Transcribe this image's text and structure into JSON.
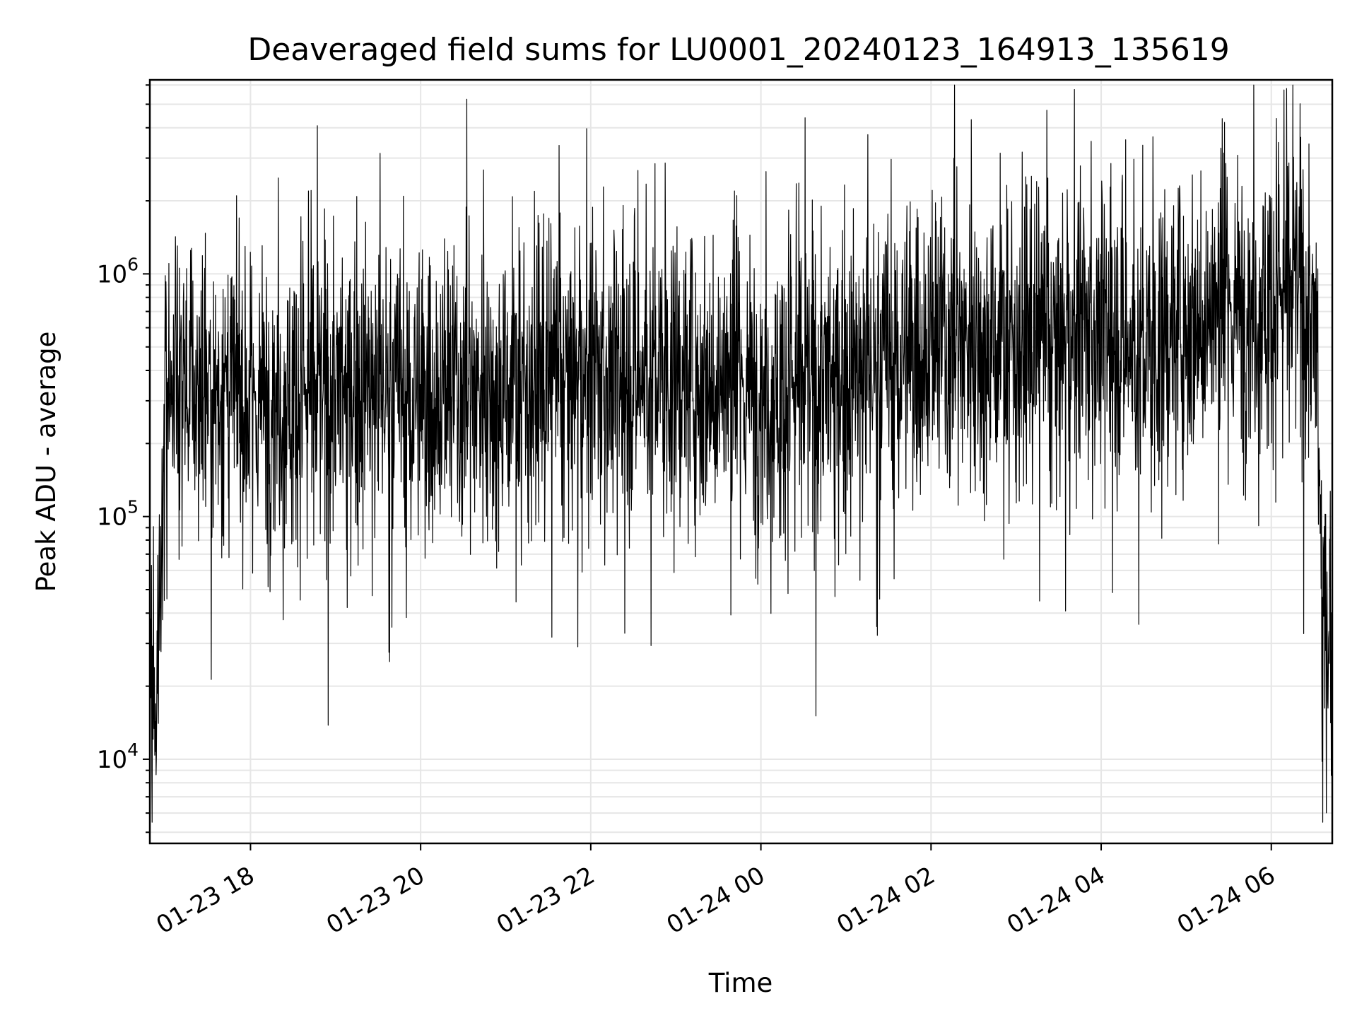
{
  "chart_data": {
    "type": "line",
    "title": "Deaveraged field sums for LU0001_20240123_164913_135619",
    "xlabel": "Time",
    "ylabel": "Peak ADU - average",
    "y_scale": "log",
    "ylim": [
      4500,
      6300000
    ],
    "xlim": [
      "2024-01-23 16:49",
      "2024-01-24 06:43"
    ],
    "grid": true,
    "line_color": "#000000",
    "x_ticks": [
      {
        "t": "2024-01-23 18:00",
        "label": "01-23 18"
      },
      {
        "t": "2024-01-23 20:00",
        "label": "01-23 20"
      },
      {
        "t": "2024-01-23 22:00",
        "label": "01-23 22"
      },
      {
        "t": "2024-01-24 00:00",
        "label": "01-24 00"
      },
      {
        "t": "2024-01-24 02:00",
        "label": "01-24 02"
      },
      {
        "t": "2024-01-24 04:00",
        "label": "01-24 04"
      },
      {
        "t": "2024-01-24 06:00",
        "label": "01-24 06"
      }
    ],
    "y_ticks": [
      {
        "value": 10000,
        "base": "10",
        "exp": "4"
      },
      {
        "value": 100000,
        "base": "10",
        "exp": "5"
      },
      {
        "value": 1000000,
        "base": "10",
        "exp": "6"
      }
    ],
    "series": [
      {
        "x": [
          "2024-01-23 16:49",
          "2024-01-23 16:53",
          "2024-01-23 16:57",
          "2024-01-23 17:00",
          "2024-01-23 17:03",
          "2024-01-23 17:15",
          "2024-01-23 17:30",
          "2024-01-23 17:45",
          "2024-01-23 18:00",
          "2024-01-23 18:30",
          "2024-01-23 19:00",
          "2024-01-23 19:30",
          "2024-01-23 20:00",
          "2024-01-23 20:30",
          "2024-01-23 21:00",
          "2024-01-23 21:30",
          "2024-01-23 22:00",
          "2024-01-23 22:30",
          "2024-01-23 23:00",
          "2024-01-23 23:30",
          "2024-01-24 00:00",
          "2024-01-24 00:30",
          "2024-01-24 01:00",
          "2024-01-24 01:30",
          "2024-01-24 02:00",
          "2024-01-24 02:30",
          "2024-01-24 03:00",
          "2024-01-24 03:30",
          "2024-01-24 04:00",
          "2024-01-24 04:30",
          "2024-01-24 05:00",
          "2024-01-24 05:30",
          "2024-01-24 06:00",
          "2024-01-24 06:20",
          "2024-01-24 06:32",
          "2024-01-24 06:36",
          "2024-01-24 06:43"
        ],
        "y": [
          12000,
          20000,
          60000,
          350000,
          400000,
          350000,
          330000,
          320000,
          300000,
          320000,
          330000,
          350000,
          300000,
          330000,
          350000,
          360000,
          370000,
          380000,
          380000,
          360000,
          330000,
          350000,
          380000,
          450000,
          500000,
          550000,
          520000,
          500000,
          600000,
          450000,
          650000,
          700000,
          800000,
          900000,
          500000,
          40000,
          30000
        ]
      }
    ]
  }
}
